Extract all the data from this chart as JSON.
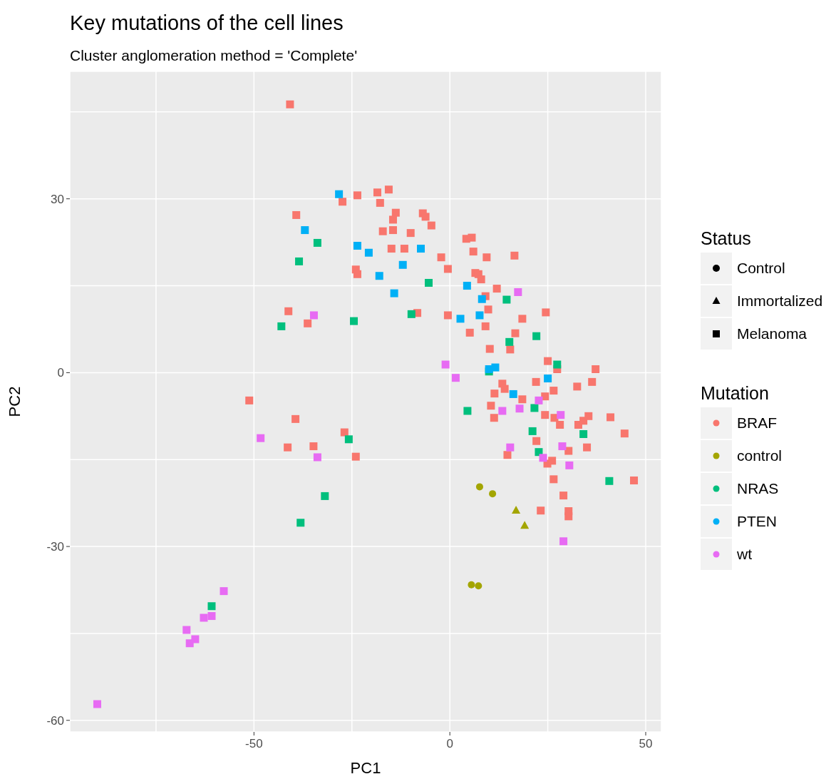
{
  "chart_data": {
    "type": "scatter",
    "title": "Key mutations of the cell lines",
    "subtitle": "Cluster anglomeration method = 'Complete'",
    "xlabel": "PC1",
    "ylabel": "PC2",
    "xlim": [
      -97,
      54
    ],
    "ylim": [
      -62,
      52
    ],
    "xticks": [
      {
        "value": -75,
        "label": null
      },
      -50,
      {
        "value": -25,
        "label": null
      },
      0,
      {
        "value": 25,
        "label": null
      },
      50
    ],
    "yticks": [
      -60,
      {
        "value": -45,
        "label": null
      },
      -30,
      {
        "value": -15,
        "label": null
      },
      0,
      {
        "value": 15,
        "label": null
      },
      30,
      {
        "value": 45,
        "label": null
      }
    ],
    "grid": true,
    "legend": "right",
    "legend_title": [
      "Status",
      "Mutation"
    ],
    "series": [
      {
        "name": "Control",
        "color": "#000000",
        "marker": "circle"
      },
      {
        "name": "Immortalized",
        "color": "#000000",
        "marker": "triangle"
      },
      {
        "name": "Melanoma",
        "color": "#000000",
        "marker": "square"
      },
      {
        "name": "BRAF",
        "color": "#f8766d",
        "marker": "square",
        "x": [
          -40.8,
          -23.6,
          -27.4,
          -18.5,
          -15.6,
          -17.8,
          -39.2,
          -13.8,
          -14.5,
          -6.9,
          -6.2,
          -4.7,
          -17.1,
          -14.5,
          -10.0,
          -14.9,
          -11.6,
          -2.2,
          -0.5,
          -24.0,
          -23.6,
          -41.2,
          -36.3,
          -8.3,
          -0.5,
          4.2,
          5.6,
          6.0,
          9.4,
          16.5,
          6.5,
          7.3,
          8.0,
          12.0,
          9.1,
          9.8,
          24.5,
          18.5,
          9.1,
          5.1,
          16.7,
          10.2,
          15.4,
          25.0,
          27.4,
          37.2,
          22.0,
          32.5,
          36.3,
          13.4,
          14.0,
          11.4,
          18.5,
          26.5,
          24.3,
          10.5,
          11.3,
          24.3,
          26.7,
          28.1,
          32.8,
          34.1,
          35.4,
          41.0,
          44.6,
          22.1,
          14.7,
          30.3,
          35.0,
          24.9,
          26.1,
          26.5,
          47.0,
          29.0,
          23.2,
          30.3,
          30.3,
          -51.2,
          -39.4,
          -26.9,
          -41.4,
          -34.8,
          -24.0
        ],
        "values": [
          46.3,
          30.6,
          29.5,
          31.1,
          31.6,
          29.3,
          27.2,
          27.6,
          26.4,
          27.5,
          26.9,
          25.4,
          24.4,
          24.6,
          24.1,
          21.4,
          21.4,
          19.9,
          17.9,
          17.8,
          17.0,
          10.6,
          8.5,
          10.3,
          9.9,
          23.1,
          23.3,
          20.9,
          19.9,
          20.2,
          17.2,
          17.0,
          16.1,
          14.5,
          13.2,
          10.9,
          10.4,
          9.3,
          8.0,
          6.9,
          6.8,
          4.1,
          4.0,
          2.0,
          0.6,
          0.6,
          -1.6,
          -2.4,
          -1.6,
          -1.9,
          -2.8,
          -3.6,
          -4.6,
          -3.1,
          -4.1,
          -5.7,
          -7.8,
          -7.3,
          -7.8,
          -9.0,
          -9.0,
          -8.3,
          -7.5,
          -7.7,
          -10.5,
          -11.8,
          -14.2,
          -13.5,
          -12.9,
          -15.7,
          -15.2,
          -18.4,
          -18.6,
          -21.2,
          -23.8,
          -23.9,
          -24.8,
          -4.8,
          -8.0,
          -10.3,
          -12.9,
          -12.7,
          -14.5
        ]
      },
      {
        "name": "control",
        "color": "#a3a500",
        "marker": "circle",
        "x": [
          7.6,
          10.9,
          5.5,
          7.3
        ],
        "values": [
          -19.7,
          -20.9,
          -36.6,
          -36.8
        ]
      },
      {
        "color": "#a3a500",
        "marker": "triangle",
        "x": [
          16.9,
          19.1
        ],
        "values": [
          -23.8,
          -26.4
        ]
      },
      {
        "name": "NRAS",
        "color": "#00bf7d",
        "marker": "square",
        "x": [
          -33.8,
          -38.5,
          -5.4,
          -43.0,
          -24.5,
          -9.8,
          14.5,
          22.1,
          15.2,
          27.4,
          10.0,
          4.5,
          21.6,
          21.1,
          34.1,
          22.7,
          40.7,
          -25.8,
          -31.9,
          -38.1,
          -60.8
        ],
        "values": [
          22.4,
          19.2,
          15.5,
          8.0,
          8.9,
          10.1,
          12.6,
          6.3,
          5.3,
          1.4,
          0.2,
          -6.6,
          -6.1,
          -10.1,
          -10.6,
          -13.7,
          -18.7,
          -11.5,
          -21.3,
          -25.9,
          -40.3
        ]
      },
      {
        "name": "PTEN",
        "color": "#00b0f6",
        "marker": "square",
        "x": [
          -28.3,
          -37.0,
          -23.6,
          -20.7,
          -7.4,
          -12.0,
          -18.0,
          -14.2,
          2.7,
          4.4,
          8.2,
          7.6,
          11.6,
          10.0,
          25.0,
          16.2
        ],
        "values": [
          30.8,
          24.6,
          21.9,
          20.7,
          21.4,
          18.6,
          16.7,
          13.7,
          9.3,
          15.0,
          12.7,
          9.9,
          0.9,
          0.6,
          -1.0,
          -3.7
        ]
      },
      {
        "name": "wt",
        "color": "#e76bf3",
        "marker": "square",
        "x": [
          -34.7,
          17.4,
          -1.1,
          1.5,
          22.7,
          13.4,
          17.8,
          28.3,
          15.4,
          28.7,
          23.8,
          30.5,
          29.0,
          -48.3,
          -33.8,
          -57.7,
          -60.8,
          -62.8,
          -67.2,
          -65.0,
          -66.4,
          -90.0
        ],
        "values": [
          9.9,
          13.9,
          1.4,
          -0.9,
          -4.8,
          -6.6,
          -6.2,
          -7.3,
          -12.9,
          -12.7,
          -14.7,
          -16.0,
          -29.1,
          -11.3,
          -14.6,
          -37.7,
          -42.0,
          -42.3,
          -44.4,
          -46.0,
          -46.7,
          -57.2
        ]
      }
    ]
  }
}
